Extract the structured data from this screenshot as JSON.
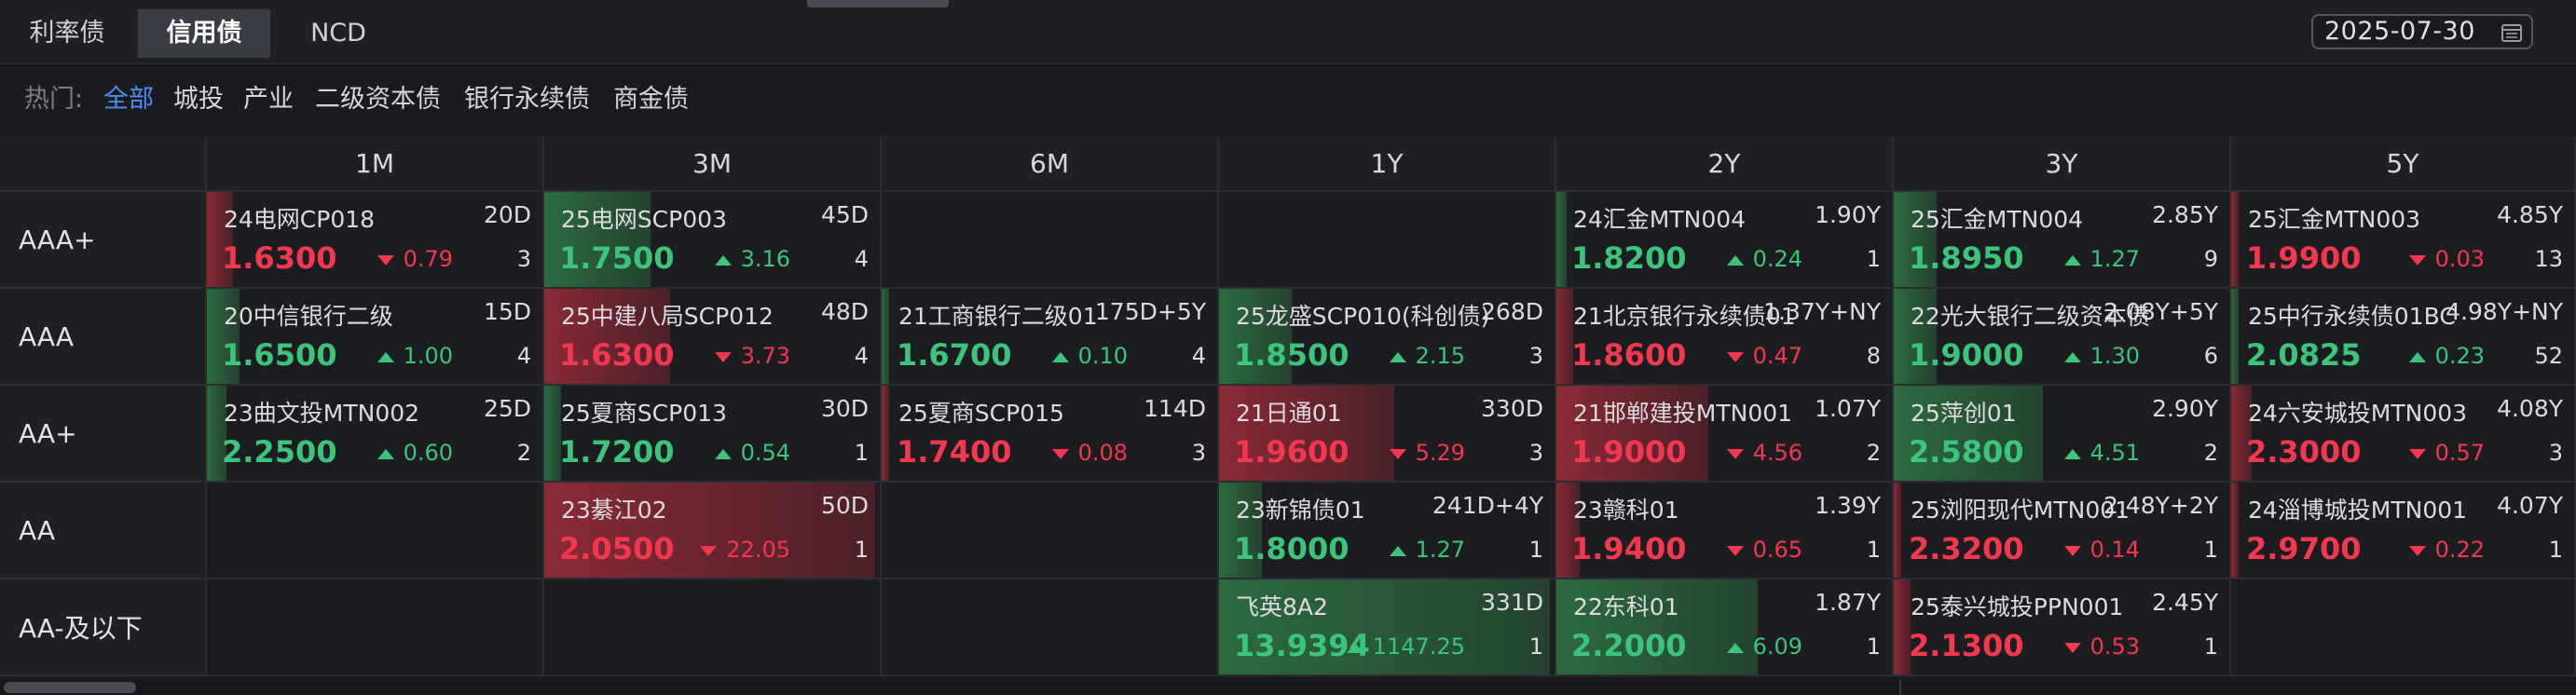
{
  "tabs": [
    {
      "label": "利率债",
      "active": false
    },
    {
      "label": "信用债",
      "active": true
    },
    {
      "label": "NCD",
      "active": false
    }
  ],
  "date": "2025-07-30",
  "hot": {
    "label": "热门:",
    "chips": [
      {
        "label": "全部",
        "active": true
      },
      {
        "label": "城投",
        "active": false
      },
      {
        "label": "产业",
        "active": false
      },
      {
        "label": "二级资本债",
        "active": false
      },
      {
        "label": "银行永续债",
        "active": false
      },
      {
        "label": "商金债",
        "active": false
      }
    ]
  },
  "columns": [
    "1M",
    "3M",
    "6M",
    "1Y",
    "2Y",
    "3Y",
    "5Y"
  ],
  "rows": [
    {
      "label": "AAA+",
      "cells": [
        {
          "name": "24电网CP018",
          "tenor": "20D",
          "yield": "1.6300",
          "change": "0.79",
          "dir": "down",
          "count": "3",
          "bar": 0.08
        },
        {
          "name": "25电网SCP003",
          "tenor": "45D",
          "yield": "1.7500",
          "change": "3.16",
          "dir": "up",
          "count": "4",
          "bar": 0.32
        },
        null,
        null,
        {
          "name": "24汇金MTN004",
          "tenor": "1.90Y",
          "yield": "1.8200",
          "change": "0.24",
          "dir": "up",
          "count": "1",
          "bar": 0.03
        },
        {
          "name": "25汇金MTN004",
          "tenor": "2.85Y",
          "yield": "1.8950",
          "change": "1.27",
          "dir": "up",
          "count": "9",
          "bar": 0.13
        },
        {
          "name": "25汇金MTN003",
          "tenor": "4.85Y",
          "yield": "1.9900",
          "change": "0.03",
          "dir": "down",
          "count": "13",
          "bar": 0.0
        }
      ]
    },
    {
      "label": "AAA",
      "cells": [
        {
          "name": "20中信银行二级",
          "tenor": "15D",
          "yield": "1.6500",
          "change": "1.00",
          "dir": "up",
          "count": "4",
          "bar": 0.1
        },
        {
          "name": "25中建八局SCP012",
          "tenor": "48D",
          "yield": "1.6300",
          "change": "3.73",
          "dir": "down",
          "count": "4",
          "bar": 0.38
        },
        {
          "name": "21工商银行二级01",
          "tenor": "175D+5Y",
          "yield": "1.6700",
          "change": "0.10",
          "dir": "up",
          "count": "4",
          "bar": 0.01
        },
        {
          "name": "25龙盛SCP010(科创债)",
          "tenor": "268D",
          "yield": "1.8500",
          "change": "2.15",
          "dir": "up",
          "count": "3",
          "bar": 0.22
        },
        {
          "name": "21北京银行永续债01",
          "tenor": "1.37Y+NY",
          "yield": "1.8600",
          "change": "0.47",
          "dir": "down",
          "count": "8",
          "bar": 0.05
        },
        {
          "name": "22光大银行二级资本债",
          "tenor": "2.08Y+5Y",
          "yield": "1.9000",
          "change": "1.30",
          "dir": "up",
          "count": "6",
          "bar": 0.13
        },
        {
          "name": "25中行永续债01BC",
          "tenor": "4.98Y+NY",
          "yield": "2.0825",
          "change": "0.23",
          "dir": "up",
          "count": "52",
          "bar": 0.02
        }
      ]
    },
    {
      "label": "AA+",
      "cells": [
        {
          "name": "23曲文投MTN002",
          "tenor": "25D",
          "yield": "2.2500",
          "change": "0.60",
          "dir": "up",
          "count": "2",
          "bar": 0.06
        },
        {
          "name": "25夏商SCP013",
          "tenor": "30D",
          "yield": "1.7200",
          "change": "0.54",
          "dir": "up",
          "count": "1",
          "bar": 0.05
        },
        {
          "name": "25夏商SCP015",
          "tenor": "114D",
          "yield": "1.7400",
          "change": "0.08",
          "dir": "down",
          "count": "3",
          "bar": 0.01
        },
        {
          "name": "21日通01",
          "tenor": "330D",
          "yield": "1.9600",
          "change": "5.29",
          "dir": "down",
          "count": "3",
          "bar": 0.53
        },
        {
          "name": "21邯郸建投MTN001",
          "tenor": "1.07Y",
          "yield": "1.9000",
          "change": "4.56",
          "dir": "down",
          "count": "2",
          "bar": 0.46
        },
        {
          "name": "25萍创01",
          "tenor": "2.90Y",
          "yield": "2.5800",
          "change": "4.51",
          "dir": "up",
          "count": "2",
          "bar": 0.45
        },
        {
          "name": "24六安城投MTN003",
          "tenor": "4.08Y",
          "yield": "2.3000",
          "change": "0.57",
          "dir": "down",
          "count": "3",
          "bar": 0.06
        }
      ]
    },
    {
      "label": "AA",
      "cells": [
        null,
        {
          "name": "23綦江02",
          "tenor": "50D",
          "yield": "2.0500",
          "change": "22.05",
          "dir": "down",
          "count": "1",
          "bar": 1.0
        },
        null,
        {
          "name": "23新锦债01",
          "tenor": "241D+4Y",
          "yield": "1.8000",
          "change": "1.27",
          "dir": "up",
          "count": "1",
          "bar": 0.13
        },
        {
          "name": "23赣科01",
          "tenor": "1.39Y",
          "yield": "1.9400",
          "change": "0.65",
          "dir": "down",
          "count": "1",
          "bar": 0.07
        },
        {
          "name": "25浏阳现代MTN001",
          "tenor": "2.48Y+2Y",
          "yield": "2.3200",
          "change": "0.14",
          "dir": "down",
          "count": "1",
          "bar": 0.01
        },
        {
          "name": "24淄博城投MTN001",
          "tenor": "4.07Y",
          "yield": "2.9700",
          "change": "0.22",
          "dir": "down",
          "count": "1",
          "bar": 0.02
        }
      ]
    },
    {
      "label": "AA-及以下",
      "cells": [
        null,
        null,
        null,
        {
          "name": "飞英8A2",
          "tenor": "331D",
          "yield": "13.9394",
          "change": "1147.25",
          "dir": "up",
          "count": "1",
          "bar": 1.0
        },
        {
          "name": "22东科01",
          "tenor": "1.87Y",
          "yield": "2.2000",
          "change": "6.09",
          "dir": "up",
          "count": "1",
          "bar": 0.61
        },
        {
          "name": "25泰兴城投PPN001",
          "tenor": "2.45Y",
          "yield": "2.1300",
          "change": "0.53",
          "dir": "down",
          "count": "1",
          "bar": 0.05
        },
        null
      ]
    }
  ],
  "colors": {
    "up": "#3bc47a",
    "down": "#f2374f",
    "accent": "#4d8df5"
  }
}
